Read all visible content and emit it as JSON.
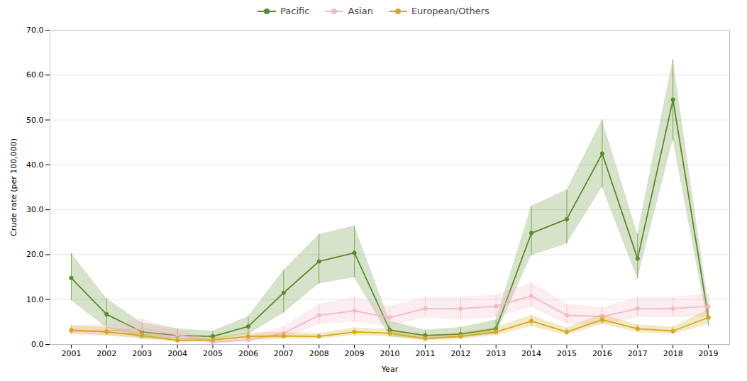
{
  "chart_data": {
    "type": "line",
    "x": [
      2001,
      2002,
      2003,
      2004,
      2005,
      2006,
      2007,
      2008,
      2009,
      2010,
      2011,
      2012,
      2013,
      2014,
      2015,
      2016,
      2017,
      2018,
      2019
    ],
    "xlabel": "Year",
    "ylabel": "Crude rate (per 100,000)",
    "xlim": [
      2000.4,
      2019.6
    ],
    "xticks": [
      2001,
      2002,
      2003,
      2004,
      2005,
      2006,
      2007,
      2008,
      2009,
      2010,
      2011,
      2012,
      2013,
      2014,
      2015,
      2016,
      2017,
      2018,
      2019
    ],
    "ylim": [
      0,
      70
    ],
    "yticks": [
      {
        "value": 0,
        "label": "0.0"
      },
      {
        "value": 10,
        "label": "10.0"
      },
      {
        "value": 20,
        "label": "20.0"
      },
      {
        "value": 30,
        "label": "30.0"
      },
      {
        "value": 40,
        "label": "40.0"
      },
      {
        "value": 50,
        "label": "50.0"
      },
      {
        "value": 60,
        "label": "60.0"
      },
      {
        "value": 70,
        "label": "70.0"
      }
    ],
    "grid": true,
    "legend": "top",
    "marker": "circle",
    "line_style": "solid",
    "series": [
      {
        "name": "Pacific",
        "color": "#5a8a2a",
        "values": [
          14.8,
          6.7,
          2.8,
          2.0,
          1.8,
          4.0,
          11.5,
          18.5,
          20.4,
          3.2,
          2.0,
          2.3,
          3.5,
          24.8,
          27.9,
          42.5,
          19.1,
          54.5,
          6.0
        ],
        "err_low": [
          5.0,
          3.0,
          1.5,
          1.0,
          0.8,
          1.8,
          4.5,
          5.0,
          5.5,
          1.5,
          0.8,
          0.8,
          1.2,
          5.0,
          5.5,
          7.5,
          4.5,
          9.0,
          2.0
        ],
        "err_high": [
          5.5,
          3.5,
          2.0,
          1.5,
          1.2,
          2.2,
          5.0,
          6.0,
          6.0,
          2.0,
          1.2,
          1.5,
          2.0,
          6.0,
          6.5,
          7.5,
          5.5,
          9.0,
          3.0
        ]
      },
      {
        "name": "Asian",
        "color": "#f5b8c4",
        "values": [
          3.0,
          3.0,
          3.5,
          2.2,
          0.5,
          1.0,
          2.5,
          6.5,
          7.5,
          6.0,
          8.0,
          8.0,
          8.5,
          10.8,
          6.5,
          6.2,
          8.0,
          8.0,
          8.5
        ],
        "err_low": [
          1.0,
          1.2,
          2.0,
          1.0,
          0.3,
          0.5,
          1.2,
          2.0,
          2.5,
          2.0,
          2.0,
          2.5,
          2.5,
          2.5,
          2.0,
          1.8,
          2.0,
          2.0,
          2.5
        ],
        "err_high": [
          1.2,
          1.5,
          2.2,
          1.2,
          0.5,
          0.7,
          1.5,
          2.5,
          3.0,
          2.5,
          2.5,
          2.5,
          2.5,
          3.0,
          2.5,
          2.0,
          2.5,
          2.5,
          2.8
        ]
      },
      {
        "name": "European/Others",
        "color": "#d4a820",
        "values": [
          3.2,
          2.8,
          2.0,
          0.9,
          1.0,
          1.8,
          1.9,
          1.8,
          2.8,
          2.5,
          1.3,
          1.8,
          2.8,
          5.2,
          2.8,
          5.5,
          3.5,
          3.0,
          6.0
        ],
        "err_low": [
          0.8,
          0.8,
          0.8,
          0.4,
          0.4,
          0.7,
          0.7,
          0.6,
          0.8,
          0.8,
          0.5,
          0.7,
          0.8,
          1.2,
          0.8,
          1.0,
          0.8,
          0.8,
          1.5
        ],
        "err_high": [
          1.0,
          1.0,
          0.9,
          0.5,
          0.5,
          0.8,
          0.8,
          0.7,
          0.9,
          0.9,
          0.6,
          0.8,
          1.0,
          1.3,
          0.9,
          1.2,
          0.9,
          0.9,
          1.8
        ]
      }
    ]
  }
}
